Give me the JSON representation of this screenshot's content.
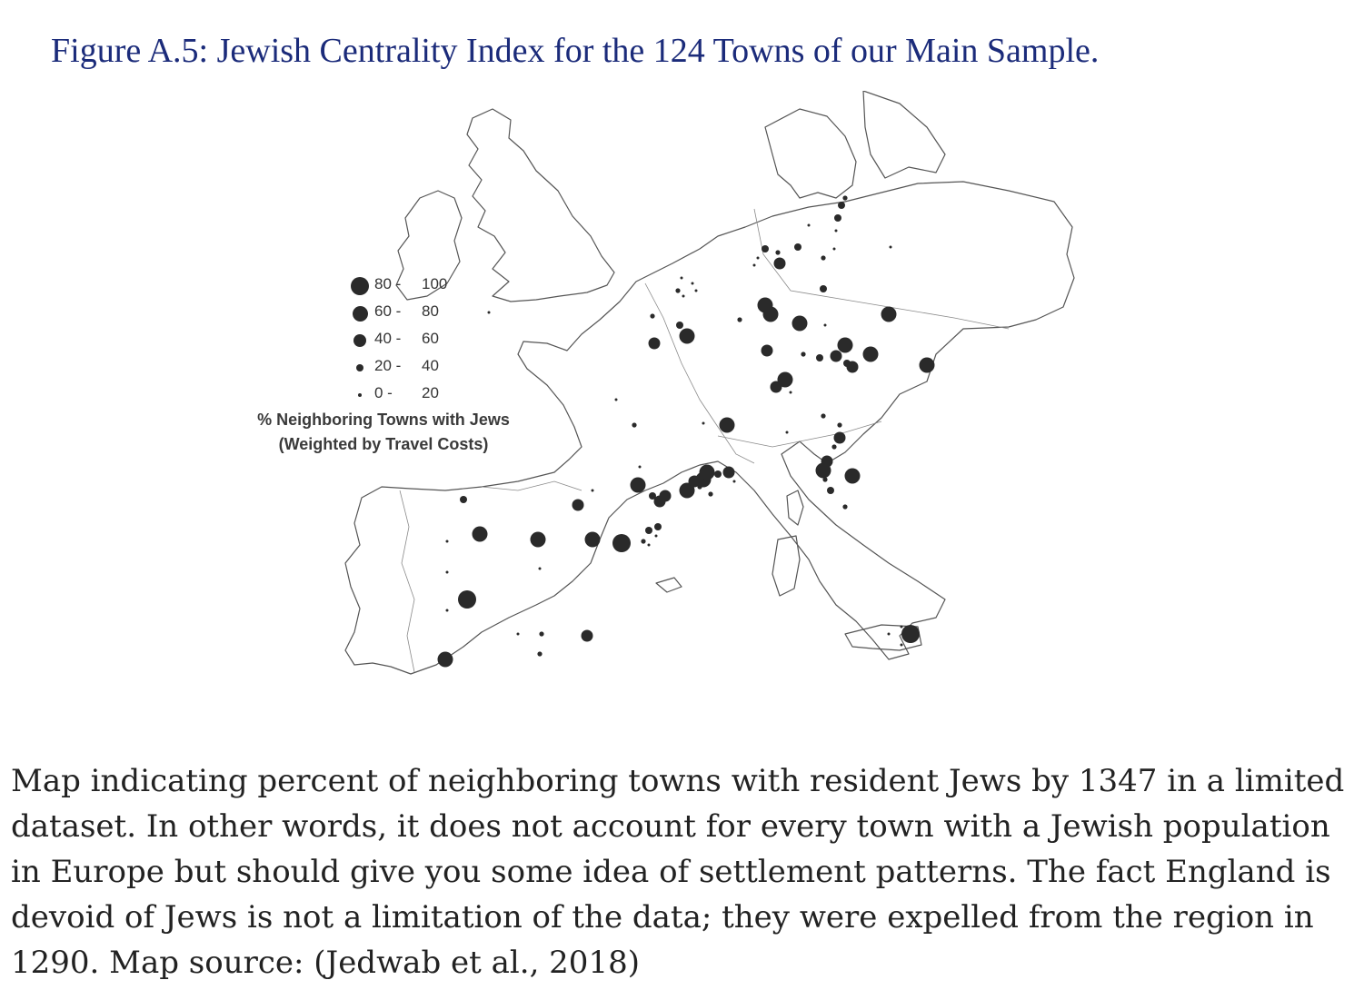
{
  "figure": {
    "title": "Figure A.5: Jewish Centrality Index for the 124 Towns of our Main Sample."
  },
  "legend": {
    "items": [
      {
        "lo": "80",
        "hi": "100",
        "size_class": 5
      },
      {
        "lo": "60",
        "hi": "80",
        "size_class": 4
      },
      {
        "lo": "40",
        "hi": "60",
        "size_class": 3
      },
      {
        "lo": "20",
        "hi": "40",
        "size_class": 2
      },
      {
        "lo": "0",
        "hi": "20",
        "size_class": 1
      }
    ],
    "caption_line1": "% Neighboring Towns with Jews",
    "caption_line2": "(Weighted by Travel Costs)"
  },
  "colors": {
    "title": "#1b2b7a",
    "marker": "#2a2a2a",
    "outline": "#555555"
  },
  "caption": "Map indicating percent of neighboring towns with resident Jews by 1347 in a limited dataset. In other words, it does not account for every town with a Jewish population in Europe but should give you some idea of settlement patterns. The fact England is devoid of Jews is not a limitation of the data; they were expelled from the region in 1290. Map source: (Jedwab et al., 2018)"
}
